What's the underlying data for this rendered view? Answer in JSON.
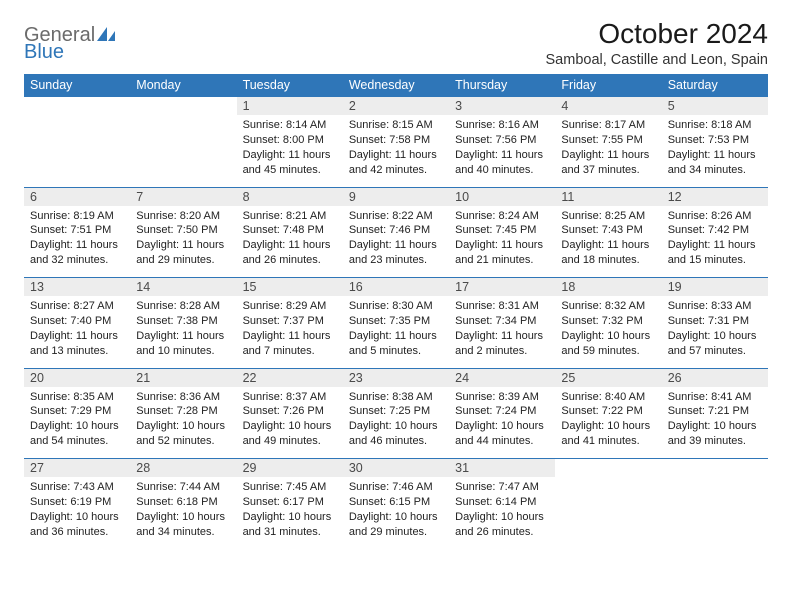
{
  "brand": {
    "text1": "General",
    "text2": "Blue"
  },
  "title": "October 2024",
  "location": "Samboal, Castille and Leon, Spain",
  "colors": {
    "header_bg": "#2f76b8",
    "header_fg": "#ffffff",
    "daynum_bg": "#ededed",
    "border": "#2f76b8"
  },
  "day_headers": [
    "Sunday",
    "Monday",
    "Tuesday",
    "Wednesday",
    "Thursday",
    "Friday",
    "Saturday"
  ],
  "weeks": [
    {
      "nums": [
        "",
        "",
        "1",
        "2",
        "3",
        "4",
        "5"
      ],
      "cells": [
        null,
        null,
        {
          "sunrise": "Sunrise: 8:14 AM",
          "sunset": "Sunset: 8:00 PM",
          "day1": "Daylight: 11 hours",
          "day2": "and 45 minutes."
        },
        {
          "sunrise": "Sunrise: 8:15 AM",
          "sunset": "Sunset: 7:58 PM",
          "day1": "Daylight: 11 hours",
          "day2": "and 42 minutes."
        },
        {
          "sunrise": "Sunrise: 8:16 AM",
          "sunset": "Sunset: 7:56 PM",
          "day1": "Daylight: 11 hours",
          "day2": "and 40 minutes."
        },
        {
          "sunrise": "Sunrise: 8:17 AM",
          "sunset": "Sunset: 7:55 PM",
          "day1": "Daylight: 11 hours",
          "day2": "and 37 minutes."
        },
        {
          "sunrise": "Sunrise: 8:18 AM",
          "sunset": "Sunset: 7:53 PM",
          "day1": "Daylight: 11 hours",
          "day2": "and 34 minutes."
        }
      ]
    },
    {
      "nums": [
        "6",
        "7",
        "8",
        "9",
        "10",
        "11",
        "12"
      ],
      "cells": [
        {
          "sunrise": "Sunrise: 8:19 AM",
          "sunset": "Sunset: 7:51 PM",
          "day1": "Daylight: 11 hours",
          "day2": "and 32 minutes."
        },
        {
          "sunrise": "Sunrise: 8:20 AM",
          "sunset": "Sunset: 7:50 PM",
          "day1": "Daylight: 11 hours",
          "day2": "and 29 minutes."
        },
        {
          "sunrise": "Sunrise: 8:21 AM",
          "sunset": "Sunset: 7:48 PM",
          "day1": "Daylight: 11 hours",
          "day2": "and 26 minutes."
        },
        {
          "sunrise": "Sunrise: 8:22 AM",
          "sunset": "Sunset: 7:46 PM",
          "day1": "Daylight: 11 hours",
          "day2": "and 23 minutes."
        },
        {
          "sunrise": "Sunrise: 8:24 AM",
          "sunset": "Sunset: 7:45 PM",
          "day1": "Daylight: 11 hours",
          "day2": "and 21 minutes."
        },
        {
          "sunrise": "Sunrise: 8:25 AM",
          "sunset": "Sunset: 7:43 PM",
          "day1": "Daylight: 11 hours",
          "day2": "and 18 minutes."
        },
        {
          "sunrise": "Sunrise: 8:26 AM",
          "sunset": "Sunset: 7:42 PM",
          "day1": "Daylight: 11 hours",
          "day2": "and 15 minutes."
        }
      ]
    },
    {
      "nums": [
        "13",
        "14",
        "15",
        "16",
        "17",
        "18",
        "19"
      ],
      "cells": [
        {
          "sunrise": "Sunrise: 8:27 AM",
          "sunset": "Sunset: 7:40 PM",
          "day1": "Daylight: 11 hours",
          "day2": "and 13 minutes."
        },
        {
          "sunrise": "Sunrise: 8:28 AM",
          "sunset": "Sunset: 7:38 PM",
          "day1": "Daylight: 11 hours",
          "day2": "and 10 minutes."
        },
        {
          "sunrise": "Sunrise: 8:29 AM",
          "sunset": "Sunset: 7:37 PM",
          "day1": "Daylight: 11 hours",
          "day2": "and 7 minutes."
        },
        {
          "sunrise": "Sunrise: 8:30 AM",
          "sunset": "Sunset: 7:35 PM",
          "day1": "Daylight: 11 hours",
          "day2": "and 5 minutes."
        },
        {
          "sunrise": "Sunrise: 8:31 AM",
          "sunset": "Sunset: 7:34 PM",
          "day1": "Daylight: 11 hours",
          "day2": "and 2 minutes."
        },
        {
          "sunrise": "Sunrise: 8:32 AM",
          "sunset": "Sunset: 7:32 PM",
          "day1": "Daylight: 10 hours",
          "day2": "and 59 minutes."
        },
        {
          "sunrise": "Sunrise: 8:33 AM",
          "sunset": "Sunset: 7:31 PM",
          "day1": "Daylight: 10 hours",
          "day2": "and 57 minutes."
        }
      ]
    },
    {
      "nums": [
        "20",
        "21",
        "22",
        "23",
        "24",
        "25",
        "26"
      ],
      "cells": [
        {
          "sunrise": "Sunrise: 8:35 AM",
          "sunset": "Sunset: 7:29 PM",
          "day1": "Daylight: 10 hours",
          "day2": "and 54 minutes."
        },
        {
          "sunrise": "Sunrise: 8:36 AM",
          "sunset": "Sunset: 7:28 PM",
          "day1": "Daylight: 10 hours",
          "day2": "and 52 minutes."
        },
        {
          "sunrise": "Sunrise: 8:37 AM",
          "sunset": "Sunset: 7:26 PM",
          "day1": "Daylight: 10 hours",
          "day2": "and 49 minutes."
        },
        {
          "sunrise": "Sunrise: 8:38 AM",
          "sunset": "Sunset: 7:25 PM",
          "day1": "Daylight: 10 hours",
          "day2": "and 46 minutes."
        },
        {
          "sunrise": "Sunrise: 8:39 AM",
          "sunset": "Sunset: 7:24 PM",
          "day1": "Daylight: 10 hours",
          "day2": "and 44 minutes."
        },
        {
          "sunrise": "Sunrise: 8:40 AM",
          "sunset": "Sunset: 7:22 PM",
          "day1": "Daylight: 10 hours",
          "day2": "and 41 minutes."
        },
        {
          "sunrise": "Sunrise: 8:41 AM",
          "sunset": "Sunset: 7:21 PM",
          "day1": "Daylight: 10 hours",
          "day2": "and 39 minutes."
        }
      ]
    },
    {
      "nums": [
        "27",
        "28",
        "29",
        "30",
        "31",
        "",
        ""
      ],
      "cells": [
        {
          "sunrise": "Sunrise: 7:43 AM",
          "sunset": "Sunset: 6:19 PM",
          "day1": "Daylight: 10 hours",
          "day2": "and 36 minutes."
        },
        {
          "sunrise": "Sunrise: 7:44 AM",
          "sunset": "Sunset: 6:18 PM",
          "day1": "Daylight: 10 hours",
          "day2": "and 34 minutes."
        },
        {
          "sunrise": "Sunrise: 7:45 AM",
          "sunset": "Sunset: 6:17 PM",
          "day1": "Daylight: 10 hours",
          "day2": "and 31 minutes."
        },
        {
          "sunrise": "Sunrise: 7:46 AM",
          "sunset": "Sunset: 6:15 PM",
          "day1": "Daylight: 10 hours",
          "day2": "and 29 minutes."
        },
        {
          "sunrise": "Sunrise: 7:47 AM",
          "sunset": "Sunset: 6:14 PM",
          "day1": "Daylight: 10 hours",
          "day2": "and 26 minutes."
        },
        null,
        null
      ]
    }
  ]
}
